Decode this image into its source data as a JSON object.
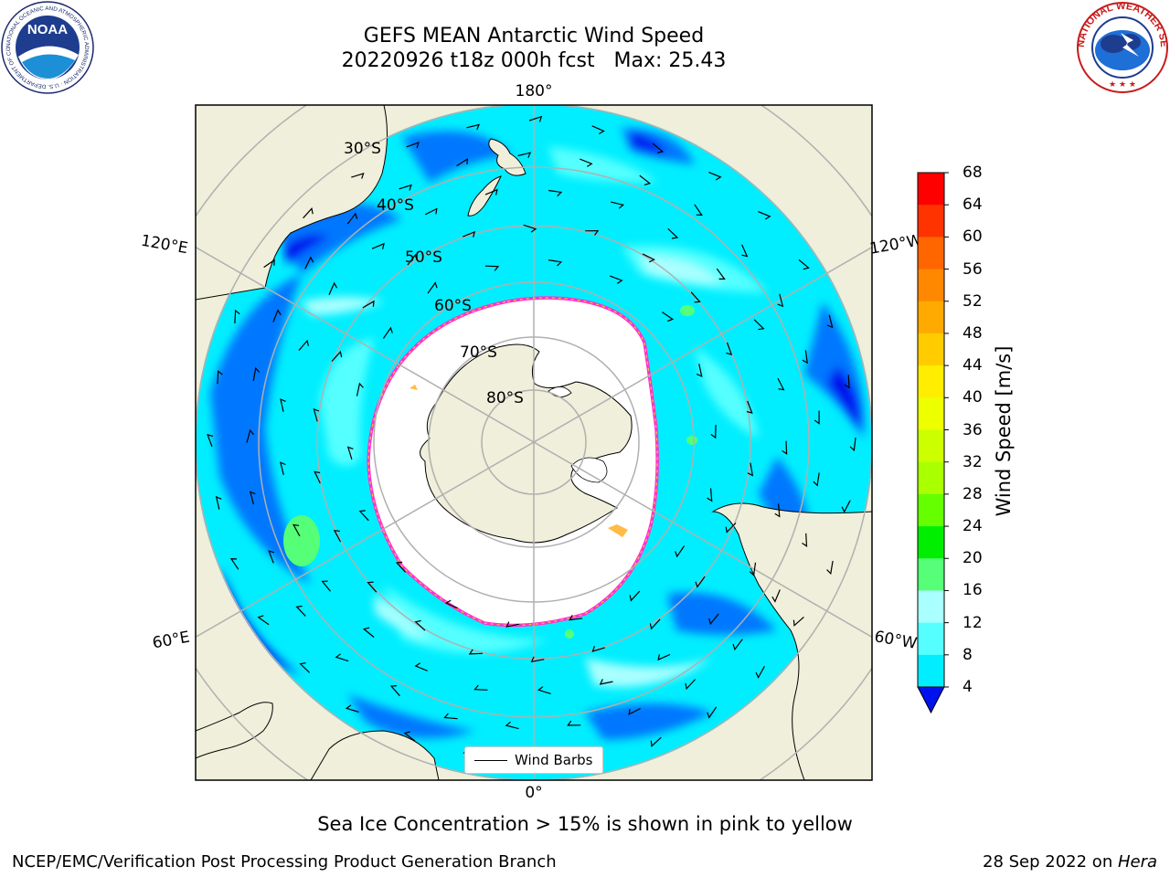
{
  "header": {
    "title_line1": "GEFS MEAN Antarctic Wind Speed",
    "title_line2": "20220926 t18z 000h fcst   Max: 25.43"
  },
  "map": {
    "projection": "south polar stereographic",
    "longitude_labels": {
      "top": "180°",
      "bottom": "0°",
      "upper_left": "120°E",
      "lower_left": "60°E",
      "upper_right": "120°W",
      "lower_right": "60°W"
    },
    "latitude_labels": [
      "30°S",
      "40°S",
      "50°S",
      "60°S",
      "70°S",
      "80°S"
    ],
    "legend_label": "Wind Barbs"
  },
  "colorbar": {
    "title": "Wind Speed [m/s]",
    "ticks": [
      "68",
      "64",
      "60",
      "56",
      "52",
      "48",
      "44",
      "40",
      "36",
      "32",
      "28",
      "24",
      "20",
      "16",
      "12",
      "8",
      "4"
    ],
    "colors": [
      "#ff0000",
      "#ff3300",
      "#ff6600",
      "#ff8800",
      "#ffaa00",
      "#ffcc00",
      "#ffee00",
      "#eeff00",
      "#ccff00",
      "#aaff00",
      "#66ff00",
      "#00ee00",
      "#55ff77",
      "#aaffff",
      "#55ffff",
      "#00eeff",
      "#0077ff"
    ],
    "under_color": "#0011ee"
  },
  "footnote": "Sea Ice Concentration > 15% is shown in pink to yellow",
  "footer": {
    "left": "NCEP/EMC/Verification Post Processing Product Generation Branch",
    "right_prefix": "28 Sep 2022 on ",
    "right_host": "Hera"
  },
  "logos": {
    "left": "NOAA",
    "left_ring_text": "NATIONAL OCEANIC AND ATMOSPHERIC ADMINISTRATION · U.S. DEPARTMENT OF COMMERCE",
    "right_ring_text": "NATIONAL WEATHER SERVICE"
  }
}
